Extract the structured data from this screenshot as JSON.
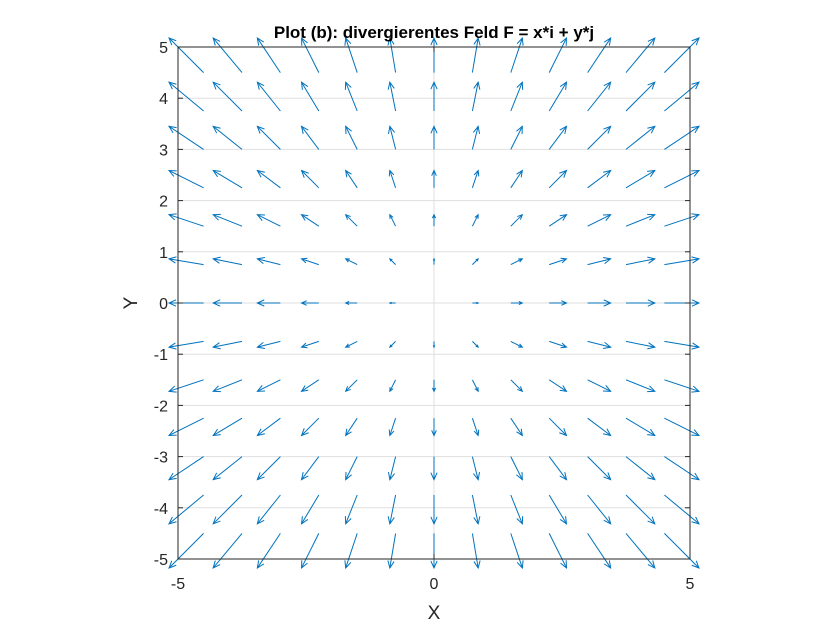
{
  "chart_data": {
    "type": "quiver",
    "title": "Plot (b): divergierentes Feld F = x*i + y*j",
    "xlabel": "X",
    "ylabel": "Y",
    "xlim": [
      -5,
      5
    ],
    "ylim": [
      -5,
      5
    ],
    "xticks": [
      -5,
      0,
      5
    ],
    "xtick_labels": [
      "-5",
      "0",
      "5"
    ],
    "yticks": [
      5,
      4,
      3,
      2,
      1,
      0,
      -1,
      -2,
      -3,
      -4,
      -5
    ],
    "ytick_labels": [
      "5",
      "4",
      "3",
      "2",
      "1",
      "0",
      "-1",
      "-2",
      "-3",
      "-4",
      "-5"
    ],
    "grid": true,
    "field": {
      "u": "x",
      "v": "y"
    },
    "grid_min": -4.5,
    "grid_step": 0.75,
    "grid_count": 13,
    "arrow_scale": 0.15,
    "color": "#0072BD"
  }
}
